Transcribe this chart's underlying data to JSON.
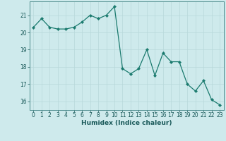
{
  "x": [
    0,
    1,
    2,
    3,
    4,
    5,
    6,
    7,
    8,
    9,
    10,
    11,
    12,
    13,
    14,
    15,
    16,
    17,
    18,
    19,
    20,
    21,
    22,
    23
  ],
  "y": [
    20.3,
    20.8,
    20.3,
    20.2,
    20.2,
    20.3,
    20.6,
    21.0,
    20.8,
    21.0,
    21.5,
    17.9,
    17.6,
    17.9,
    19.0,
    17.5,
    18.8,
    18.3,
    18.3,
    17.0,
    16.6,
    17.2,
    16.1,
    15.8
  ],
  "line_color": "#1a7a6e",
  "marker": "D",
  "marker_size": 2.2,
  "bg_color": "#ceeaec",
  "grid_color": "#b8d8da",
  "xlabel": "Humidex (Indice chaleur)",
  "ylim": [
    15.5,
    21.8
  ],
  "xlim": [
    -0.5,
    23.5
  ],
  "yticks": [
    16,
    17,
    18,
    19,
    20,
    21
  ],
  "xticks": [
    0,
    1,
    2,
    3,
    4,
    5,
    6,
    7,
    8,
    9,
    10,
    11,
    12,
    13,
    14,
    15,
    16,
    17,
    18,
    19,
    20,
    21,
    22,
    23
  ],
  "tick_fontsize": 5.5,
  "xlabel_fontsize": 6.5
}
